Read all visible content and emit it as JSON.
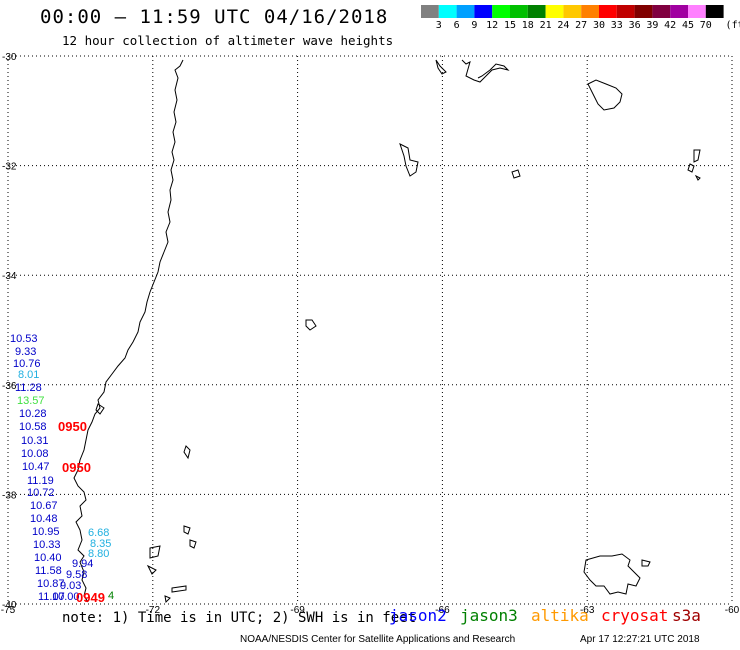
{
  "header": {
    "title": "00:00 — 11:59 UTC 04/16/2018",
    "subtitle": "12 hour collection of altimeter wave heights"
  },
  "color_scale": {
    "unit": "(ft)",
    "bins": [
      {
        "label": "3",
        "color": "#808080"
      },
      {
        "label": "6",
        "color": "#00ffff"
      },
      {
        "label": "9",
        "color": "#00a0ff"
      },
      {
        "label": "12",
        "color": "#0000ff"
      },
      {
        "label": "15",
        "color": "#00ff00"
      },
      {
        "label": "18",
        "color": "#00c000"
      },
      {
        "label": "21",
        "color": "#008000"
      },
      {
        "label": "24",
        "color": "#ffff00"
      },
      {
        "label": "27",
        "color": "#ffc800"
      },
      {
        "label": "30",
        "color": "#ff8000"
      },
      {
        "label": "33",
        "color": "#ff0000"
      },
      {
        "label": "36",
        "color": "#c00000"
      },
      {
        "label": "39",
        "color": "#800000"
      },
      {
        "label": "42",
        "color": "#800040"
      },
      {
        "label": "45",
        "color": "#a000a0"
      },
      {
        "label": "70",
        "color": "#ff80ff"
      },
      {
        "label": "",
        "color": "#000000"
      }
    ]
  },
  "map": {
    "lon_range": [
      -75,
      -60
    ],
    "lat_range": [
      -40,
      -30
    ],
    "lat_ticks": [
      "-30",
      "-32",
      "-34",
      "-36",
      "-38",
      "-40"
    ],
    "lon_ticks": [
      "-75",
      "-72",
      "-69",
      "-66",
      "-63",
      "-60"
    ],
    "grid_lines": "dotted"
  },
  "observations": [
    {
      "value": "10.53",
      "color": "#0000c8"
    },
    {
      "value": "9.33",
      "color": "#0000c8"
    },
    {
      "value": "10.76",
      "color": "#0000c8"
    },
    {
      "value": "8.01",
      "color": "#20b0e0"
    },
    {
      "value": "11.28",
      "color": "#0000c8"
    },
    {
      "value": "13.57",
      "color": "#40e040"
    },
    {
      "value": "10.28",
      "color": "#0000c8"
    },
    {
      "value": "10.58",
      "color": "#0000c8"
    },
    {
      "value": "10.31",
      "color": "#0000c8"
    },
    {
      "value": "10.08",
      "color": "#0000c8"
    },
    {
      "value": "10.47",
      "color": "#0000c8"
    },
    {
      "value": "11.19",
      "color": "#0000c8"
    },
    {
      "value": "10.72",
      "color": "#0000c8"
    },
    {
      "value": "10.67",
      "color": "#0000c8"
    },
    {
      "value": "10.48",
      "color": "#0000c8"
    },
    {
      "value": "10.95",
      "color": "#0000c8"
    },
    {
      "value": "10.33",
      "color": "#0000c8"
    },
    {
      "value": "10.40",
      "color": "#0000c8"
    },
    {
      "value": "11.58",
      "color": "#0000c8"
    },
    {
      "value": "10.87",
      "color": "#0000c8"
    },
    {
      "value": "11.07",
      "color": "#0000c8"
    },
    {
      "value": "6.68",
      "color": "#20b0e0"
    },
    {
      "value": "8.35",
      "color": "#20b0e0"
    },
    {
      "value": "8.80",
      "color": "#20b0e0"
    },
    {
      "value": "9.94",
      "color": "#0000c8"
    },
    {
      "value": "9.58",
      "color": "#0000c8"
    },
    {
      "value": "9.03",
      "color": "#0000c8"
    },
    {
      "value": "10.00",
      "color": "#0000c8"
    },
    {
      "value": "4",
      "color": "#008000"
    }
  ],
  "pass_times": [
    "0950",
    "0950",
    "0949"
  ],
  "footer": {
    "note": "note: 1) Time is in UTC; 2) SWH is in feet",
    "satellites": [
      {
        "name": "jason2",
        "color": "#0000ff"
      },
      {
        "name": "jason3",
        "color": "#008000"
      },
      {
        "name": "altika",
        "color": "#ff9900"
      },
      {
        "name": "cryosat",
        "color": "#ff0000"
      },
      {
        "name": "s3a",
        "color": "#a00000"
      }
    ],
    "credit": "NOAA/NESDIS Center for Satellite Applications and Research",
    "generated": "Apr 17 12:27:21 UTC 2018"
  }
}
